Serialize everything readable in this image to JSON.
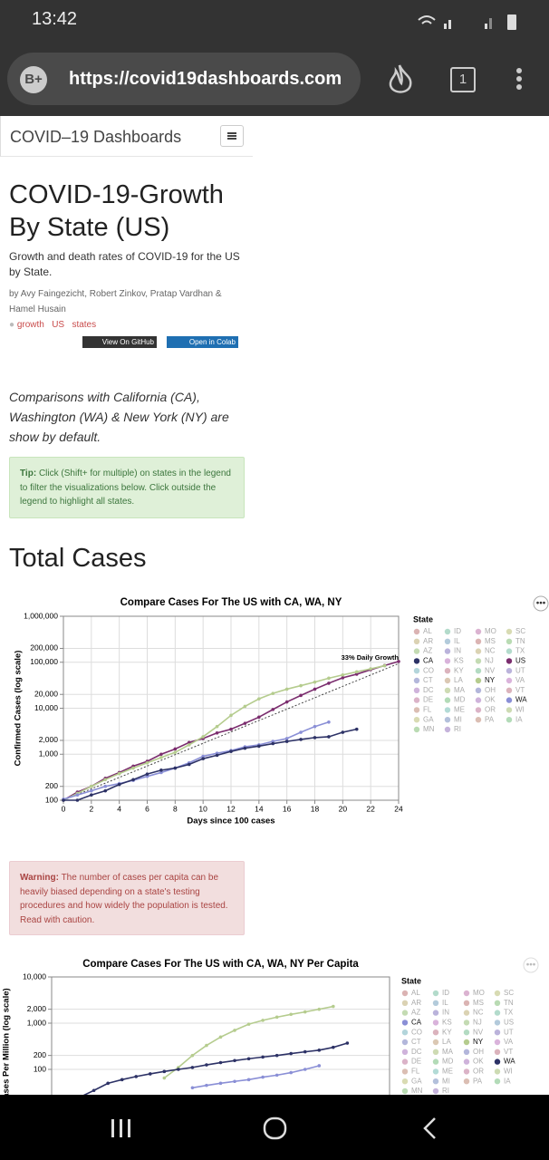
{
  "status_bar": {
    "time": "13:42"
  },
  "browser": {
    "profile": "B+",
    "url": "https://covid19dashboards.com",
    "tab_count": 1
  },
  "site": {
    "name": "COVID–19 Dashboards"
  },
  "article": {
    "title": "COVID-19-Growth By State (US)",
    "description": "Growth and death rates of COVID-19 for the US by State.",
    "authors": "by Avy Faingezicht, Robert Zinkov, Pratap Vardhan & Hamel Husain",
    "tags": [
      "growth",
      "US",
      "states"
    ],
    "buttons": [
      "View On GitHub",
      "Open in Colab"
    ],
    "intro": "Comparisons with California (CA), Washington (WA) & New York (NY) are show by default.",
    "tip": {
      "label": "Tip:",
      "text": "Click (Shift+ for multiple) on states in the legend to filter the visualizations below. Click outside the legend to highlight all states."
    },
    "section_heading": "Total Cases",
    "warning": {
      "label": "Warning:",
      "text": "The number of cases per capita can be heavily biased depending on a state's testing procedures and how widely the population is tested. Read with caution."
    }
  },
  "chart_data": [
    {
      "type": "line",
      "title": "Compare Cases For The US with CA, WA, NY",
      "x_label": "Days since 100 cases",
      "y_label": "Confirmed Cases (log scale)",
      "log_y": true,
      "grid": true,
      "xlim": [
        0,
        24
      ],
      "xticks": [
        0,
        2,
        4,
        6,
        8,
        10,
        12,
        14,
        16,
        18,
        20,
        22,
        24
      ],
      "ylim": [
        100,
        1000000
      ],
      "yticks": [
        100,
        200,
        {
          "value": 1000,
          "label": "1,000"
        },
        {
          "value": 2000,
          "label": "2,000"
        },
        {
          "value": 10000,
          "label": "10,000"
        },
        {
          "value": 20000,
          "label": "20,000"
        },
        {
          "value": 100000,
          "label": "100,000"
        },
        {
          "value": 200000,
          "label": "200,000"
        },
        {
          "value": 1000000,
          "label": "1,000,000"
        }
      ],
      "annotation": {
        "label": "33% Daily Growth",
        "x": [
          0,
          24
        ],
        "values": [
          100,
          93500
        ]
      },
      "legend_title": "State",
      "legend": [
        "AL",
        "AR",
        "AZ",
        "CA",
        "CO",
        "CT",
        "DC",
        "DE",
        "FL",
        "GA",
        "MN",
        "ID",
        "IL",
        "IN",
        "KS",
        "KY",
        "LA",
        "MA",
        "MD",
        "ME",
        "MI",
        "RI",
        "MO",
        "MS",
        "NC",
        "NJ",
        "NV",
        "NY",
        "OH",
        "OK",
        "OR",
        "PA",
        "SC",
        "TN",
        "TX",
        "US",
        "UT",
        "VA",
        "VT",
        "WA",
        "WI",
        "IA"
      ],
      "series": [
        {
          "name": "US",
          "color": "#7b2d6e",
          "x": [
            0,
            1,
            2,
            3,
            4,
            5,
            6,
            7,
            8,
            9,
            10,
            11,
            12,
            13,
            14,
            15,
            16,
            17,
            18,
            19,
            20,
            21,
            22,
            23,
            24
          ],
          "values": [
            100,
            150,
            200,
            300,
            400,
            550,
            700,
            1000,
            1300,
            1800,
            2200,
            2900,
            3500,
            4700,
            6400,
            9400,
            13700,
            19000,
            26000,
            35000,
            46000,
            55000,
            69000,
            85000,
            104000
          ]
        },
        {
          "name": "NY",
          "color": "#b5cc8e",
          "x": [
            0,
            1,
            2,
            3,
            4,
            5,
            6,
            7,
            8,
            9,
            10,
            11,
            12,
            13,
            14,
            15,
            16,
            17,
            18,
            19,
            20,
            21,
            22,
            23
          ],
          "values": [
            100,
            140,
            200,
            280,
            380,
            500,
            650,
            850,
            1100,
            1600,
            2400,
            4000,
            7000,
            11000,
            16000,
            21000,
            26000,
            31000,
            37000,
            45000,
            53000,
            62000,
            72000,
            84000
          ]
        },
        {
          "name": "WA",
          "color": "#8a8fd6",
          "x": [
            0,
            1,
            2,
            3,
            4,
            5,
            6,
            7,
            8,
            9,
            10,
            11,
            12,
            13,
            14,
            15,
            16,
            17,
            18,
            19
          ],
          "values": [
            105,
            130,
            160,
            200,
            230,
            270,
            330,
            400,
            500,
            650,
            900,
            1050,
            1200,
            1450,
            1600,
            1900,
            2200,
            3000,
            4000,
            5000
          ]
        },
        {
          "name": "CA",
          "color": "#2d3266",
          "x": [
            0,
            1,
            2,
            3,
            4,
            5,
            6,
            7,
            8,
            9,
            10,
            11,
            12,
            13,
            14,
            15,
            16,
            17,
            18,
            19,
            20,
            21
          ],
          "values": [
            100,
            100,
            130,
            160,
            220,
            280,
            370,
            450,
            500,
            600,
            800,
            950,
            1150,
            1350,
            1500,
            1700,
            1900,
            2100,
            2300,
            2400,
            3000,
            3500
          ]
        }
      ]
    },
    {
      "type": "line",
      "title": "Compare Cases For The US with CA, WA, NY Per Capita",
      "y_label": "Cases Per Million (log scale)",
      "log_y": true,
      "grid": true,
      "xlim": [
        0,
        24
      ],
      "ylim": [
        10,
        10000
      ],
      "yticks": [
        100,
        200,
        {
          "value": 1000,
          "label": "1,000"
        },
        {
          "value": 2000,
          "label": "2,000"
        },
        {
          "value": 10000,
          "label": "10,000"
        }
      ],
      "legend_title": "State",
      "legend": [
        "AL",
        "AR",
        "AZ",
        "CA",
        "CO",
        "CT",
        "DC",
        "DE",
        "FL",
        "GA",
        "MN",
        "ID",
        "IL",
        "IN",
        "KS",
        "KY",
        "LA",
        "MA",
        "MD",
        "ME",
        "MI",
        "RI",
        "MO",
        "MS",
        "NC",
        "NJ",
        "NV",
        "NY",
        "OH",
        "OK",
        "OR",
        "PA",
        "SC",
        "TN",
        "TX",
        "US",
        "UT",
        "VA",
        "VT",
        "WA",
        "WI",
        "IA"
      ],
      "series": [
        {
          "name": "NY",
          "color": "#b5cc8e",
          "x": [
            8,
            9,
            10,
            11,
            12,
            13,
            14,
            15,
            16,
            17,
            18,
            19,
            20
          ],
          "values": [
            65,
            110,
            200,
            330,
            500,
            700,
            950,
            1150,
            1350,
            1550,
            1750,
            2000,
            2300
          ]
        },
        {
          "name": "WA",
          "color": "#2d3266",
          "x": [
            2,
            3,
            4,
            5,
            6,
            7,
            8,
            9,
            10,
            11,
            12,
            13,
            14,
            15,
            16,
            17,
            18,
            19,
            20,
            21
          ],
          "values": [
            25,
            35,
            50,
            60,
            70,
            80,
            90,
            100,
            110,
            125,
            140,
            155,
            170,
            185,
            200,
            220,
            240,
            260,
            300,
            370
          ]
        },
        {
          "name": "CA",
          "color": "#8a8fd6",
          "x": [
            10,
            11,
            12,
            13,
            14,
            15,
            16,
            17,
            18,
            19
          ],
          "values": [
            40,
            45,
            50,
            55,
            60,
            68,
            75,
            85,
            100,
            120
          ]
        }
      ]
    }
  ]
}
